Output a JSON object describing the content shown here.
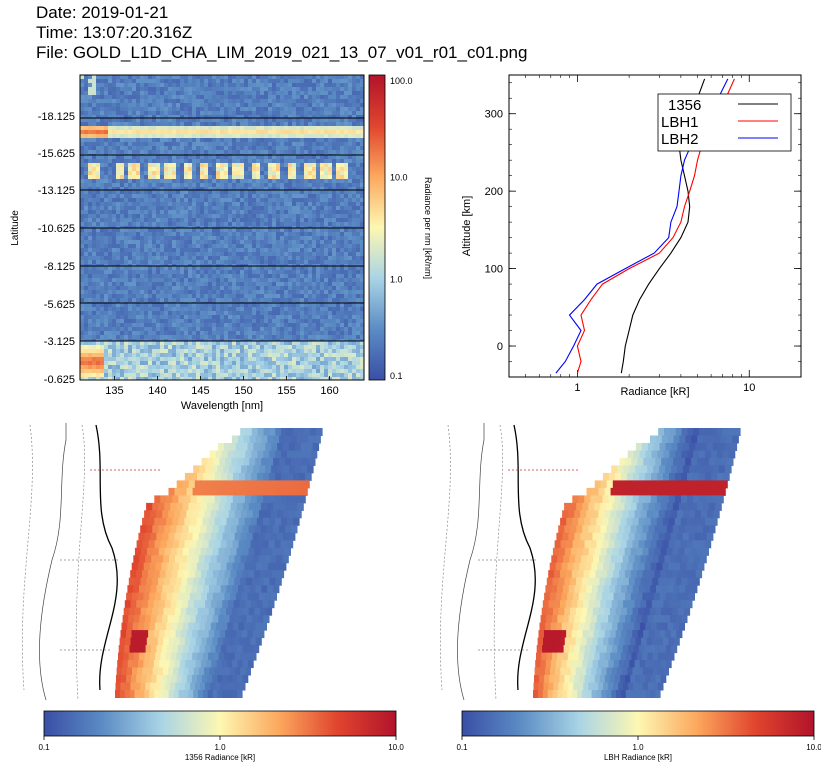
{
  "header": {
    "date": "Date: 2019-01-21",
    "time": "Time: 13:07:20.316Z",
    "file": "File: GOLD_L1D_CHA_LIM_2019_021_13_07_v01_r01_c01.png"
  },
  "chart_data": [
    {
      "type": "heatmap",
      "name": "spectrogram",
      "xlabel": "Wavelength [nm]",
      "ylabel": "Latitude",
      "xlim": [
        131,
        164
      ],
      "xticks": [
        "135",
        "140",
        "145",
        "150",
        "155",
        "160"
      ],
      "yticks": [
        "-18.125",
        "-15.625",
        "-13.125",
        "-10.625",
        "-8.125",
        "-5.625",
        "-3.125",
        "-0.625"
      ],
      "colorbar": {
        "label": "Radiance per nm [kR/nm]",
        "scale": "log",
        "ticks": [
          "100.0",
          "10.0",
          "1.0",
          "0.1"
        ],
        "colormap": [
          "#3a4fa6",
          "#5b8cc4",
          "#a9d4e6",
          "#fdf7b2",
          "#fca85e",
          "#e0452e",
          "#b2132b"
        ]
      }
    },
    {
      "type": "line",
      "name": "altitude-profile",
      "xlabel": "Radiance [kR]",
      "ylabel": "Altitude [km]",
      "xscale": "log",
      "xlim": [
        0.4,
        20
      ],
      "ylim": [
        -40,
        350
      ],
      "xticks": [
        "1",
        "10"
      ],
      "yticks": [
        "0",
        "100",
        "200",
        "300"
      ],
      "legend": "top-right",
      "series": [
        {
          "name": "1356",
          "color": "#000000",
          "x": [
            1.8,
            1.85,
            1.9,
            2.0,
            2.1,
            2.3,
            2.6,
            3.0,
            3.5,
            4.0,
            4.4,
            4.5,
            4.4,
            4.2,
            4.0,
            3.9,
            4.1,
            4.5,
            5.0,
            5.5
          ],
          "y": [
            -35,
            -20,
            0,
            20,
            40,
            60,
            80,
            100,
            120,
            140,
            160,
            180,
            200,
            220,
            240,
            260,
            280,
            300,
            320,
            345
          ]
        },
        {
          "name": "LBH1",
          "color": "#ff0000",
          "x": [
            1.0,
            1.05,
            1.0,
            1.1,
            1.05,
            1.2,
            1.4,
            2.0,
            3.0,
            3.6,
            4.0,
            4.2,
            4.5,
            4.8,
            5.0,
            5.3,
            5.8,
            6.5,
            7.3,
            8.2
          ],
          "y": [
            -35,
            -20,
            0,
            20,
            40,
            60,
            80,
            100,
            120,
            140,
            160,
            180,
            200,
            220,
            240,
            260,
            280,
            300,
            320,
            345
          ]
        },
        {
          "name": "LBH2",
          "color": "#0000ff",
          "x": [
            0.75,
            0.85,
            0.95,
            1.05,
            0.9,
            1.1,
            1.3,
            1.9,
            2.8,
            3.4,
            3.5,
            3.8,
            3.9,
            4.0,
            4.2,
            4.6,
            5.2,
            5.9,
            6.6,
            7.5
          ],
          "y": [
            -35,
            -20,
            0,
            20,
            40,
            60,
            80,
            100,
            120,
            140,
            160,
            180,
            200,
            220,
            240,
            260,
            280,
            300,
            320,
            345
          ]
        }
      ]
    },
    {
      "type": "heatmap",
      "name": "disk-map-1356",
      "colorbar": {
        "label": "1356 Radiance [kR]",
        "scale": "log",
        "ticks": [
          "0.1",
          "1.0",
          "10.0"
        ],
        "colormap": [
          "#3a4fa6",
          "#5b8cc4",
          "#a9d4e6",
          "#fdf7b2",
          "#fca85e",
          "#e0452e",
          "#b2132b"
        ]
      }
    },
    {
      "type": "heatmap",
      "name": "disk-map-lbh",
      "colorbar": {
        "label": "LBH Radiance [kR]",
        "scale": "log",
        "ticks": [
          "0.1",
          "1.0",
          "10.0"
        ],
        "colormap": [
          "#3a4fa6",
          "#5b8cc4",
          "#a9d4e6",
          "#fdf7b2",
          "#fca85e",
          "#e0452e",
          "#b2132b"
        ]
      }
    }
  ]
}
